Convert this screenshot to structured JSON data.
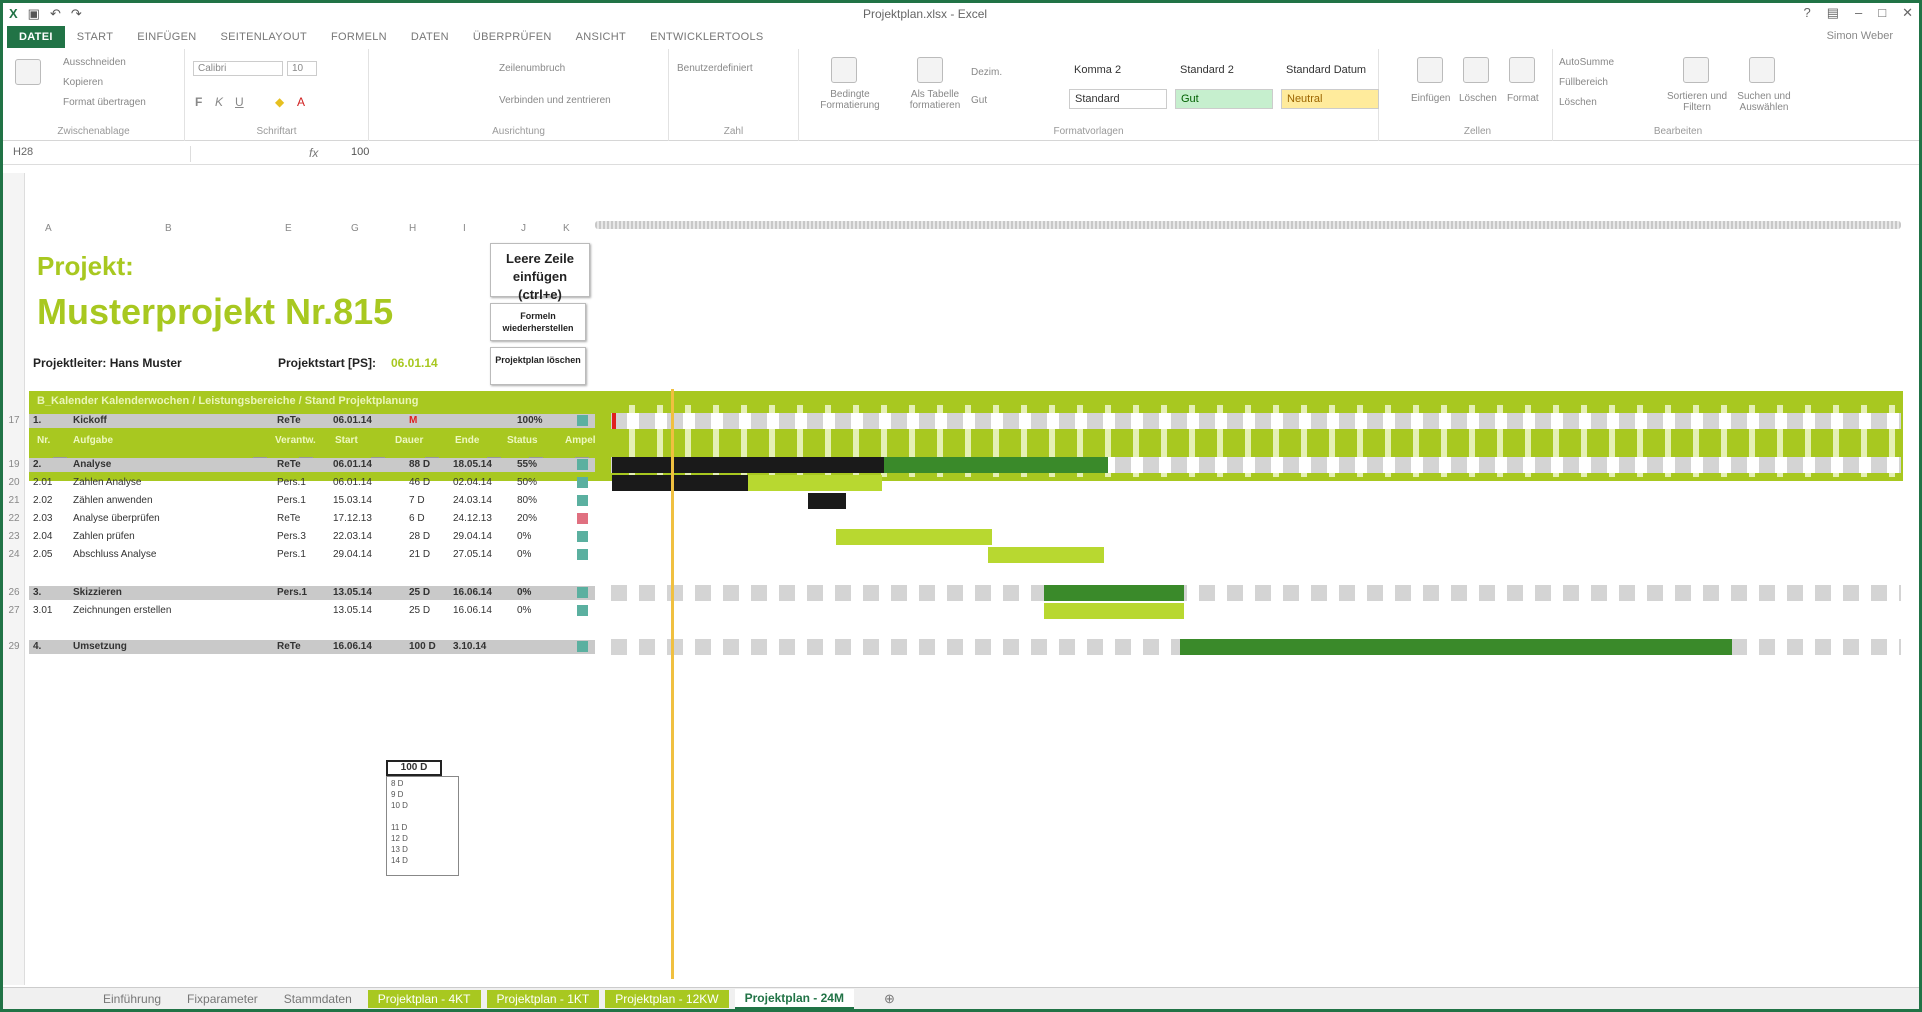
{
  "window": {
    "title": "Projektplan.xlsx - Excel",
    "user": "Simon Weber"
  },
  "ribbon": {
    "tabs": [
      "DATEI",
      "START",
      "EINFÜGEN",
      "SEITENLAYOUT",
      "FORMELN",
      "DATEN",
      "ÜBERPRÜFEN",
      "ANSICHT",
      "ENTWICKLERTOOLS"
    ],
    "groups": [
      "Zwischenablage",
      "Schriftart",
      "Ausrichtung",
      "Zahl",
      "Formatvorlagen",
      "Zellen",
      "Bearbeiten"
    ],
    "clipboard": {
      "cut": "Ausschneiden",
      "copy": "Kopieren",
      "painter": "Format übertragen"
    },
    "font": {
      "name": "Calibri",
      "size": "10"
    },
    "align": {
      "wrap": "Zeilenumbruch",
      "merge": "Verbinden und zentrieren"
    },
    "number": {
      "format": "Benutzerdefiniert"
    },
    "styles": {
      "cond": "Bedingte Formatierung",
      "table": "Als Tabelle formatieren",
      "s1": "Komma 2",
      "s2": "Standard 2",
      "s3": "Standard Datum",
      "s4": "Standard",
      "s5": "Gut",
      "s6": "Neutral",
      "dezim": "Dezim.",
      "gut": "Gut"
    },
    "cells": {
      "insert": "Einfügen",
      "delete": "Löschen",
      "format": "Format"
    },
    "edit": {
      "autosum": "AutoSumme",
      "fill": "Füllbereich",
      "clear": "Löschen",
      "sort": "Sortieren und Filtern",
      "find": "Suchen und Auswählen"
    }
  },
  "formula": {
    "namebox": "H28",
    "fx": "fx",
    "value": "100"
  },
  "sheet": {
    "project_label": "Projekt:",
    "project_name": "Musterprojekt Nr.815",
    "pm_label": "Projektleiter: Hans Muster",
    "start_label": "Projektstart [PS]:",
    "start_value": "06.01.14",
    "btn_insert": "Leere Zeile einfügen (ctrl+e)",
    "btn_formulas": "Formeln wiederherstellen",
    "btn_clear": "Projektplan löschen",
    "band_text": "B_Kalender Kalenderwochen / Leistungsbereiche / Stand Projektplanung",
    "col_headers": [
      "Nr.",
      "Aufgabe",
      "Verantw.",
      "Start",
      "Dauer",
      "Ende",
      "Status",
      "Ampel"
    ],
    "rows": [
      {
        "n": "17",
        "nr": "1.",
        "task": "Kickoff",
        "resp": "ReTe",
        "start": "06.01.14",
        "dur": "M",
        "end": "",
        "pct": "100%",
        "type": "sum",
        "lamp": "#5bb0a0"
      },
      {
        "n": "19",
        "nr": "2.",
        "task": "Analyse",
        "resp": "ReTe",
        "start": "06.01.14",
        "dur": "88 D",
        "end": "18.05.14",
        "pct": "55%",
        "type": "sum",
        "lamp": "#5bb0a0"
      },
      {
        "n": "20",
        "nr": "2.01",
        "task": "Zahlen Analyse",
        "resp": "Pers.1",
        "start": "06.01.14",
        "dur": "46 D",
        "end": "02.04.14",
        "pct": "50%",
        "type": "task",
        "lamp": "#5bb0a0"
      },
      {
        "n": "21",
        "nr": "2.02",
        "task": "Zählen anwenden",
        "resp": "Pers.1",
        "start": "15.03.14",
        "dur": "7 D",
        "end": "24.03.14",
        "pct": "80%",
        "type": "task",
        "lamp": "#5bb0a0"
      },
      {
        "n": "22",
        "nr": "2.03",
        "task": "Analyse überprüfen",
        "resp": "ReTe",
        "start": "17.12.13",
        "dur": "6 D",
        "end": "24.12.13",
        "pct": "20%",
        "type": "task",
        "lamp": "#e07080"
      },
      {
        "n": "23",
        "nr": "2.04",
        "task": "Zahlen prüfen",
        "resp": "Pers.3",
        "start": "22.03.14",
        "dur": "28 D",
        "end": "29.04.14",
        "pct": "0%",
        "type": "task",
        "lamp": "#5bb0a0"
      },
      {
        "n": "24",
        "nr": "2.05",
        "task": "Abschluss Analyse",
        "resp": "Pers.1",
        "start": "29.04.14",
        "dur": "21 D",
        "end": "27.05.14",
        "pct": "0%",
        "type": "task",
        "lamp": "#5bb0a0"
      },
      {
        "n": "26",
        "nr": "3.",
        "task": "Skizzieren",
        "resp": "Pers.1",
        "start": "13.05.14",
        "dur": "25 D",
        "end": "16.06.14",
        "pct": "0%",
        "type": "sum",
        "lamp": "#5bb0a0"
      },
      {
        "n": "27",
        "nr": "3.01",
        "task": "Zeichnungen erstellen",
        "resp": "",
        "start": "13.05.14",
        "dur": "25 D",
        "end": "16.06.14",
        "pct": "0%",
        "type": "task",
        "lamp": "#5bb0a0"
      },
      {
        "n": "29",
        "nr": "4.",
        "task": "Umsetzung",
        "resp": "ReTe",
        "start": "16.06.14",
        "dur": "100 D",
        "end": "3.10.14",
        "pct": "",
        "type": "sum",
        "lamp": "#5bb0a0"
      }
    ],
    "dropdown_options": [
      "8 D",
      "9 D",
      "10 D",
      "",
      "11 D",
      "12 D",
      "13 D",
      "14 D"
    ]
  },
  "sheet_tabs": [
    "Einführung",
    "Fixparameter",
    "Stammdaten",
    "Projektplan - 4KT",
    "Projektplan - 1KT",
    "Projektplan - 12KW",
    "Projektplan - 24M"
  ],
  "colors": {
    "accent": "#a8c820",
    "excel": "#217346",
    "dark": "#1a1a1a",
    "green": "#3a8a2a",
    "light": "#b8d830"
  }
}
